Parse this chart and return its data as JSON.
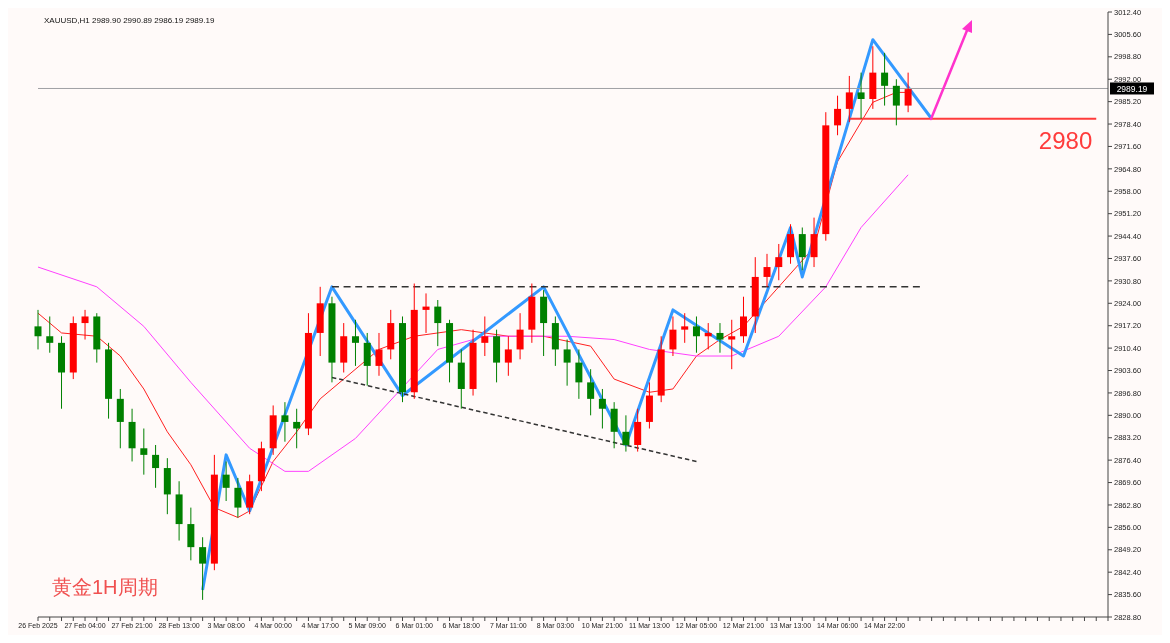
{
  "chart_data": {
    "type": "candlestick",
    "title": "XAUUSD,H1  2989.90 2990.89 2986.19 2989.19",
    "annotations": [
      "黄金1H周期"
    ],
    "categories": [
      "26 Feb 2025",
      null,
      null,
      null,
      "27 Feb 04:00",
      null,
      null,
      null,
      "27 Feb 21:00",
      null,
      null,
      null,
      "28 Feb 13:00",
      null,
      null,
      null,
      "3 Mar 08:00",
      null,
      null,
      null,
      "4 Mar 00:00",
      null,
      null,
      null,
      "4 Mar 17:00",
      null,
      null,
      null,
      "5 Mar 09:00",
      null,
      null,
      null,
      "6 Mar 01:00",
      null,
      null,
      null,
      "6 Mar 18:00",
      null,
      null,
      null,
      "7 Mar 11:00",
      null,
      null,
      null,
      "8 Mar 03:00",
      null,
      null,
      null,
      "10 Mar 21:00",
      null,
      null,
      null,
      "11 Mar 13:00",
      null,
      null,
      null,
      "12 Mar 05:00",
      null,
      null,
      null,
      "12 Mar 21:00",
      null,
      null,
      null,
      "13 Mar 13:00",
      null,
      null,
      null,
      "14 Mar 06:00",
      null,
      null,
      null,
      "14 Mar 22:00",
      null,
      null,
      null,
      null,
      null,
      null,
      null,
      null,
      null,
      null,
      null,
      null,
      null,
      null,
      null,
      null,
      null,
      null,
      null
    ],
    "ohlc": [
      [
        2917,
        2922,
        2910,
        2914
      ],
      [
        2914,
        2920,
        2909,
        2912
      ],
      [
        2912,
        2914,
        2892,
        2903
      ],
      [
        2903,
        2920,
        2901,
        2918
      ],
      [
        2918,
        2922,
        2913,
        2920
      ],
      [
        2920,
        2921,
        2906,
        2910
      ],
      [
        2910,
        2912,
        2889,
        2895
      ],
      [
        2895,
        2898,
        2880,
        2888
      ],
      [
        2888,
        2892,
        2876,
        2880
      ],
      [
        2880,
        2886,
        2872,
        2878
      ],
      [
        2878,
        2881,
        2868,
        2874
      ],
      [
        2874,
        2877,
        2860,
        2866
      ],
      [
        2866,
        2870,
        2852,
        2857
      ],
      [
        2857,
        2862,
        2846,
        2850
      ],
      [
        2850,
        2853,
        2834,
        2845
      ],
      [
        2845,
        2878,
        2843,
        2872
      ],
      [
        2872,
        2876,
        2864,
        2868
      ],
      [
        2868,
        2871,
        2859,
        2862
      ],
      [
        2862,
        2872,
        2860,
        2870
      ],
      [
        2870,
        2882,
        2867,
        2880
      ],
      [
        2880,
        2893,
        2878,
        2890
      ],
      [
        2890,
        2894,
        2882,
        2888
      ],
      [
        2888,
        2892,
        2880,
        2886
      ],
      [
        2886,
        2921,
        2884,
        2915
      ],
      [
        2915,
        2929,
        2908,
        2924
      ],
      [
        2924,
        2926,
        2900,
        2906
      ],
      [
        2906,
        2918,
        2903,
        2914
      ],
      [
        2914,
        2919,
        2905,
        2912
      ],
      [
        2912,
        2915,
        2899,
        2905
      ],
      [
        2905,
        2915,
        2902,
        2910
      ],
      [
        2910,
        2922,
        2907,
        2918
      ],
      [
        2918,
        2920,
        2894,
        2897
      ],
      [
        2897,
        2930,
        2895,
        2922
      ],
      [
        2922,
        2927,
        2915,
        2923
      ],
      [
        2923,
        2925,
        2911,
        2918
      ],
      [
        2918,
        2919,
        2900,
        2906
      ],
      [
        2906,
        2910,
        2892,
        2898
      ],
      [
        2898,
        2916,
        2896,
        2912
      ],
      [
        2912,
        2920,
        2908,
        2914
      ],
      [
        2914,
        2916,
        2900,
        2906
      ],
      [
        2906,
        2914,
        2902,
        2910
      ],
      [
        2910,
        2921,
        2907,
        2916
      ],
      [
        2916,
        2930,
        2912,
        2926
      ],
      [
        2926,
        2928,
        2908,
        2918
      ],
      [
        2918,
        2920,
        2905,
        2910
      ],
      [
        2910,
        2913,
        2899,
        2906
      ],
      [
        2906,
        2910,
        2895,
        2900
      ],
      [
        2900,
        2904,
        2890,
        2895
      ],
      [
        2895,
        2898,
        2886,
        2892
      ],
      [
        2892,
        2894,
        2880,
        2885
      ],
      [
        2885,
        2890,
        2879,
        2881
      ],
      [
        2881,
        2892,
        2879,
        2888
      ],
      [
        2888,
        2900,
        2886,
        2896
      ],
      [
        2896,
        2914,
        2894,
        2910
      ],
      [
        2910,
        2920,
        2908,
        2916
      ],
      [
        2916,
        2921,
        2912,
        2917
      ],
      [
        2917,
        2920,
        2909,
        2914
      ],
      [
        2914,
        2918,
        2910,
        2915
      ],
      [
        2915,
        2918,
        2909,
        2913
      ],
      [
        2913,
        2919,
        2904,
        2914
      ],
      [
        2914,
        2926,
        2912,
        2920
      ],
      [
        2920,
        2938,
        2915,
        2932
      ],
      [
        2932,
        2939,
        2929,
        2935
      ],
      [
        2935,
        2942,
        2931,
        2938
      ],
      [
        2938,
        2948,
        2936,
        2945
      ],
      [
        2945,
        2947,
        2934,
        2938
      ],
      [
        2938,
        2950,
        2935,
        2945
      ],
      [
        2945,
        2982,
        2943,
        2978
      ],
      [
        2978,
        2987,
        2975,
        2983
      ],
      [
        2983,
        2993,
        2979,
        2988
      ],
      [
        2988,
        2994,
        2980,
        2986
      ],
      [
        2986,
        3002,
        2983,
        2994
      ],
      [
        2994,
        3000,
        2984,
        2990
      ],
      [
        2990,
        2992,
        2978,
        2984
      ],
      [
        2984,
        2994,
        2982,
        2989
      ],
      null,
      null,
      null,
      null,
      null,
      null,
      null,
      null,
      null,
      null,
      null,
      null,
      null,
      null,
      null,
      null,
      null
    ],
    "colors": [
      "#008000",
      "#008000",
      "#008000",
      "#ff0000",
      "#ff0000",
      "#008000",
      "#008000",
      "#008000",
      "#008000",
      "#008000",
      "#008000",
      "#008000",
      "#008000",
      "#008000",
      "#008000",
      "#ff0000",
      "#008000",
      "#008000",
      "#ff0000",
      "#ff0000",
      "#ff0000",
      "#008000",
      "#008000",
      "#ff0000",
      "#ff0000",
      "#008000",
      "#ff0000",
      "#008000",
      "#008000",
      "#ff0000",
      "#ff0000",
      "#008000",
      "#ff0000",
      "#ff0000",
      "#008000",
      "#008000",
      "#008000",
      "#ff0000",
      "#ff0000",
      "#008000",
      "#ff0000",
      "#ff0000",
      "#ff0000",
      "#008000",
      "#008000",
      "#008000",
      "#008000",
      "#008000",
      "#008000",
      "#008000",
      "#008000",
      "#ff0000",
      "#ff0000",
      "#ff0000",
      "#ff0000",
      "#ff0000",
      "#008000",
      "#ff0000",
      "#008000",
      "#ff0000",
      "#ff0000",
      "#ff0000",
      "#ff0000",
      "#ff0000",
      "#ff0000",
      "#008000",
      "#ff0000",
      "#ff0000",
      "#ff0000",
      "#ff0000",
      "#008000",
      "#ff0000",
      "#008000",
      "#008000",
      "#ff0000",
      null,
      null,
      null,
      null,
      null,
      null,
      null,
      null,
      null,
      null,
      null,
      null,
      null,
      null,
      null,
      null,
      null
    ],
    "ylim": [
      2828.8,
      3012.4
    ],
    "yticks": [
      {
        "value": 2828.8,
        "label": "2828.80"
      },
      {
        "value": 2835.6,
        "label": "2835.60"
      },
      {
        "value": 2842.4,
        "label": "2842.40"
      },
      {
        "value": 2849.2,
        "label": "2849.20"
      },
      {
        "value": 2856,
        "label": "2856.00"
      },
      {
        "value": 2862.8,
        "label": "2862.80"
      },
      {
        "value": 2869.6,
        "label": "2869.60"
      },
      {
        "value": 2876.4,
        "label": "2876.40"
      },
      {
        "value": 2883.2,
        "label": "2883.20"
      },
      {
        "value": 2890,
        "label": "2890.00"
      },
      {
        "value": 2896.8,
        "label": "2896.80"
      },
      {
        "value": 2903.6,
        "label": "2903.60"
      },
      {
        "value": 2910.4,
        "label": "2910.40"
      },
      {
        "value": 2917.2,
        "label": "2917.20"
      },
      {
        "value": 2924,
        "label": "2924.00"
      },
      {
        "value": 2930.8,
        "label": "2930.80"
      },
      {
        "value": 2937.6,
        "label": "2937.60"
      },
      {
        "value": 2944.4,
        "label": "2944.40"
      },
      {
        "value": 2951.2,
        "label": "2951.20"
      },
      {
        "value": 2958,
        "label": "2958.00"
      },
      {
        "value": 2964.8,
        "label": "2964.80"
      },
      {
        "value": 2971.6,
        "label": "2971.60"
      },
      {
        "value": 2978.4,
        "label": "2978.40"
      },
      {
        "value": 2985.2,
        "label": "2985.20"
      },
      {
        "value": 2992,
        "label": "2992.00"
      },
      {
        "value": 2998.8,
        "label": "2998.80"
      },
      {
        "value": 3005.6,
        "label": "3005.60"
      },
      {
        "value": 3012.4,
        "label": "3012.40"
      }
    ],
    "ref_lines": [
      {
        "axis": "y",
        "value": 2989.19,
        "label": "2989.19",
        "color": "#a0a0a4"
      }
    ],
    "series": [
      {
        "type": "line",
        "color": "#ff2020",
        "values": [
          2921,
          null,
          2915,
          null,
          null,
          2914,
          null,
          2908,
          null,
          2898,
          null,
          2885,
          null,
          2875,
          null,
          2862,
          null,
          2859,
          2861,
          null,
          2876,
          null,
          2885,
          null,
          2895,
          null,
          2901,
          null,
          null,
          2910,
          null,
          null,
          2914,
          null,
          null,
          null,
          2916,
          null,
          null,
          null,
          2914,
          null,
          null,
          2914,
          null,
          null,
          null,
          2911,
          null,
          2901,
          null,
          null,
          2897,
          null,
          2898,
          null,
          2908,
          null,
          2913,
          null,
          2917,
          null,
          null,
          2929,
          null,
          null,
          2941,
          null,
          2967,
          null,
          null,
          2985,
          null,
          2988,
          2988,
          null,
          null,
          null,
          null,
          null,
          null,
          null,
          null,
          null,
          null,
          null,
          null,
          null,
          null,
          null,
          null,
          null
        ]
      },
      {
        "type": "line",
        "color": "#ff40ff",
        "values": [
          2935,
          null,
          null,
          null,
          null,
          2929,
          null,
          null,
          null,
          2917,
          null,
          null,
          null,
          2900,
          null,
          null,
          null,
          null,
          2880,
          null,
          null,
          2873,
          null,
          2873,
          null,
          null,
          null,
          2883,
          null,
          null,
          null,
          null,
          null,
          null,
          2910,
          null,
          null,
          null,
          2914,
          null,
          null,
          null,
          null,
          null,
          null,
          2914,
          null,
          null,
          null,
          2913,
          null,
          null,
          2910,
          null,
          null,
          null,
          2908,
          null,
          null,
          2908,
          null,
          null,
          null,
          2914,
          null,
          null,
          null,
          2929,
          null,
          null,
          2947,
          null,
          null,
          null,
          2963,
          null,
          null,
          null,
          null,
          null,
          null,
          null,
          null,
          null,
          null,
          null,
          null,
          null,
          null,
          null,
          null,
          null
        ]
      },
      {
        "type": "line",
        "color": "#3399ff",
        "values": [
          null,
          null,
          null,
          null,
          null,
          null,
          null,
          null,
          null,
          null,
          null,
          null,
          null,
          null,
          2837,
          null,
          2878,
          null,
          2861,
          null,
          null,
          null,
          null,
          null,
          null,
          2929,
          null,
          null,
          null,
          null,
          null,
          2896,
          null,
          null,
          null,
          null,
          null,
          null,
          null,
          null,
          null,
          null,
          null,
          2929,
          null,
          null,
          null,
          null,
          null,
          null,
          2881,
          null,
          null,
          null,
          2922,
          null,
          null,
          null,
          null,
          null,
          2908,
          null,
          null,
          null,
          2947,
          2932,
          null,
          null,
          null,
          null,
          null,
          3004,
          null,
          null,
          null,
          null,
          2980,
          null,
          null,
          null,
          null,
          null,
          null,
          null,
          null,
          null,
          null,
          null,
          null,
          null,
          null,
          null
        ]
      },
      {
        "type": "line",
        "color": "#333333",
        "line_style": "dashed",
        "values": [
          null,
          null,
          null,
          null,
          null,
          null,
          null,
          null,
          null,
          null,
          null,
          null,
          null,
          null,
          null,
          null,
          null,
          null,
          null,
          null,
          null,
          null,
          null,
          null,
          null,
          2929,
          null,
          null,
          null,
          null,
          null,
          null,
          null,
          null,
          null,
          null,
          null,
          null,
          null,
          null,
          null,
          null,
          null,
          null,
          null,
          null,
          null,
          null,
          null,
          null,
          null,
          null,
          null,
          null,
          null,
          null,
          null,
          null,
          null,
          null,
          null,
          null,
          null,
          null,
          null,
          null,
          null,
          null,
          null,
          null,
          null,
          null,
          null,
          null,
          null,
          2929,
          null,
          null,
          null,
          null,
          null,
          null,
          null,
          null,
          null,
          null,
          null,
          null,
          null,
          null,
          null,
          null
        ]
      },
      {
        "type": "line",
        "color": "#333333",
        "line_style": "dashed",
        "values": [
          null,
          null,
          null,
          null,
          null,
          null,
          null,
          null,
          null,
          null,
          null,
          null,
          null,
          null,
          null,
          null,
          null,
          null,
          null,
          null,
          null,
          null,
          null,
          null,
          null,
          2901.5,
          null,
          null,
          null,
          null,
          null,
          null,
          null,
          null,
          null,
          null,
          null,
          null,
          null,
          null,
          null,
          null,
          null,
          null,
          null,
          null,
          null,
          null,
          null,
          null,
          null,
          null,
          null,
          null,
          null,
          null,
          2876,
          null,
          null,
          null,
          null,
          null,
          null,
          null,
          null,
          null,
          null,
          null,
          null,
          null,
          null,
          null,
          null,
          null,
          null,
          null,
          null,
          null,
          null,
          null,
          null,
          null,
          null,
          null,
          null,
          null,
          null,
          null,
          null,
          null,
          null,
          null
        ]
      },
      {
        "type": "line",
        "name": "2980",
        "color": "#ff3b3b",
        "values": [
          null,
          null,
          null,
          null,
          null,
          null,
          null,
          null,
          null,
          null,
          null,
          null,
          null,
          null,
          null,
          null,
          null,
          null,
          null,
          null,
          null,
          null,
          null,
          null,
          null,
          null,
          null,
          null,
          null,
          null,
          null,
          null,
          null,
          null,
          null,
          null,
          null,
          null,
          null,
          null,
          null,
          null,
          null,
          null,
          null,
          null,
          null,
          null,
          null,
          null,
          null,
          null,
          null,
          null,
          null,
          null,
          null,
          null,
          null,
          null,
          null,
          null,
          null,
          null,
          null,
          null,
          null,
          null,
          null,
          2980,
          null,
          null,
          null,
          null,
          null,
          null,
          null,
          null,
          null,
          null,
          null,
          null,
          null,
          null,
          null,
          null,
          null,
          null,
          null,
          null,
          2980,
          null
        ]
      }
    ]
  }
}
